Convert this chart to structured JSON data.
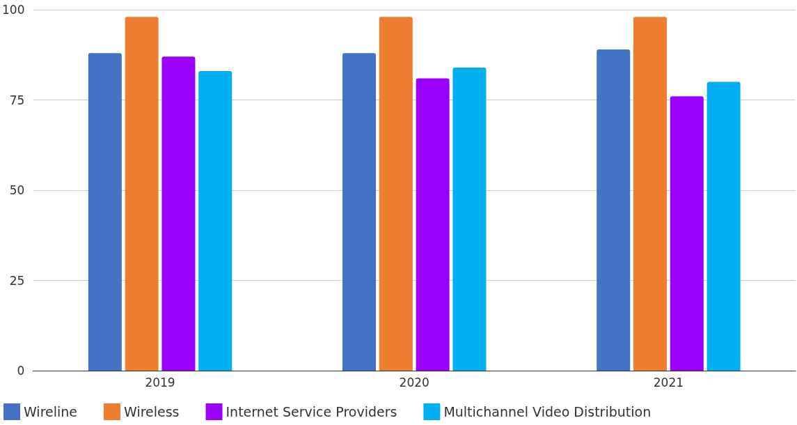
{
  "chart_data": {
    "type": "bar",
    "categories": [
      "2019",
      "2020",
      "2021"
    ],
    "series": [
      {
        "name": "Wireline",
        "color": "#4472c4",
        "values": [
          88,
          88,
          89
        ]
      },
      {
        "name": "Wireless",
        "color": "#ed7d31",
        "values": [
          98,
          98,
          98
        ]
      },
      {
        "name": "Internet Service Providers",
        "color": "#9900ff",
        "values": [
          87,
          81,
          76
        ]
      },
      {
        "name": "Multichannel Video Distribution",
        "color": "#00b0f0",
        "values": [
          83,
          84,
          80
        ]
      }
    ],
    "ylim": [
      0,
      100
    ],
    "yticks": [
      0,
      25,
      50,
      75,
      100
    ],
    "grid": "y",
    "legend": "bottom left"
  }
}
